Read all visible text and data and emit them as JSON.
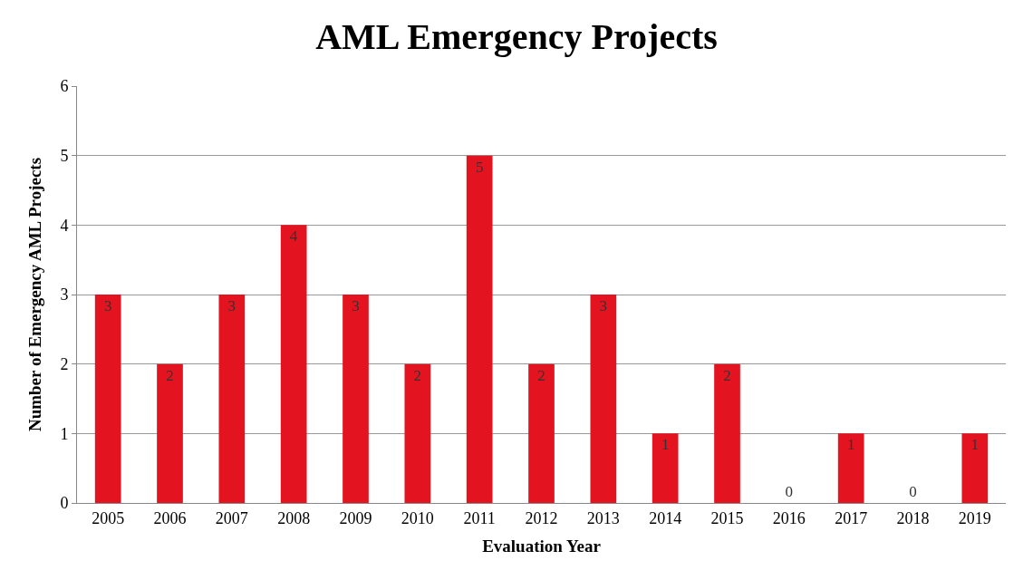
{
  "chart_data": {
    "type": "bar",
    "title": "AML Emergency Projects",
    "xlabel": "Evaluation Year",
    "ylabel": "Number of Emergency AML Projects",
    "categories": [
      "2005",
      "2006",
      "2007",
      "2008",
      "2009",
      "2010",
      "2011",
      "2012",
      "2013",
      "2014",
      "2015",
      "2016",
      "2017",
      "2018",
      "2019"
    ],
    "values": [
      3,
      2,
      3,
      4,
      3,
      2,
      5,
      2,
      3,
      1,
      2,
      0,
      1,
      0,
      1
    ],
    "color": "#e3141f",
    "ylim": [
      0,
      6
    ],
    "yticks": [
      0,
      1,
      2,
      3,
      4,
      5,
      6
    ],
    "grid": "y",
    "data_labels": true
  }
}
